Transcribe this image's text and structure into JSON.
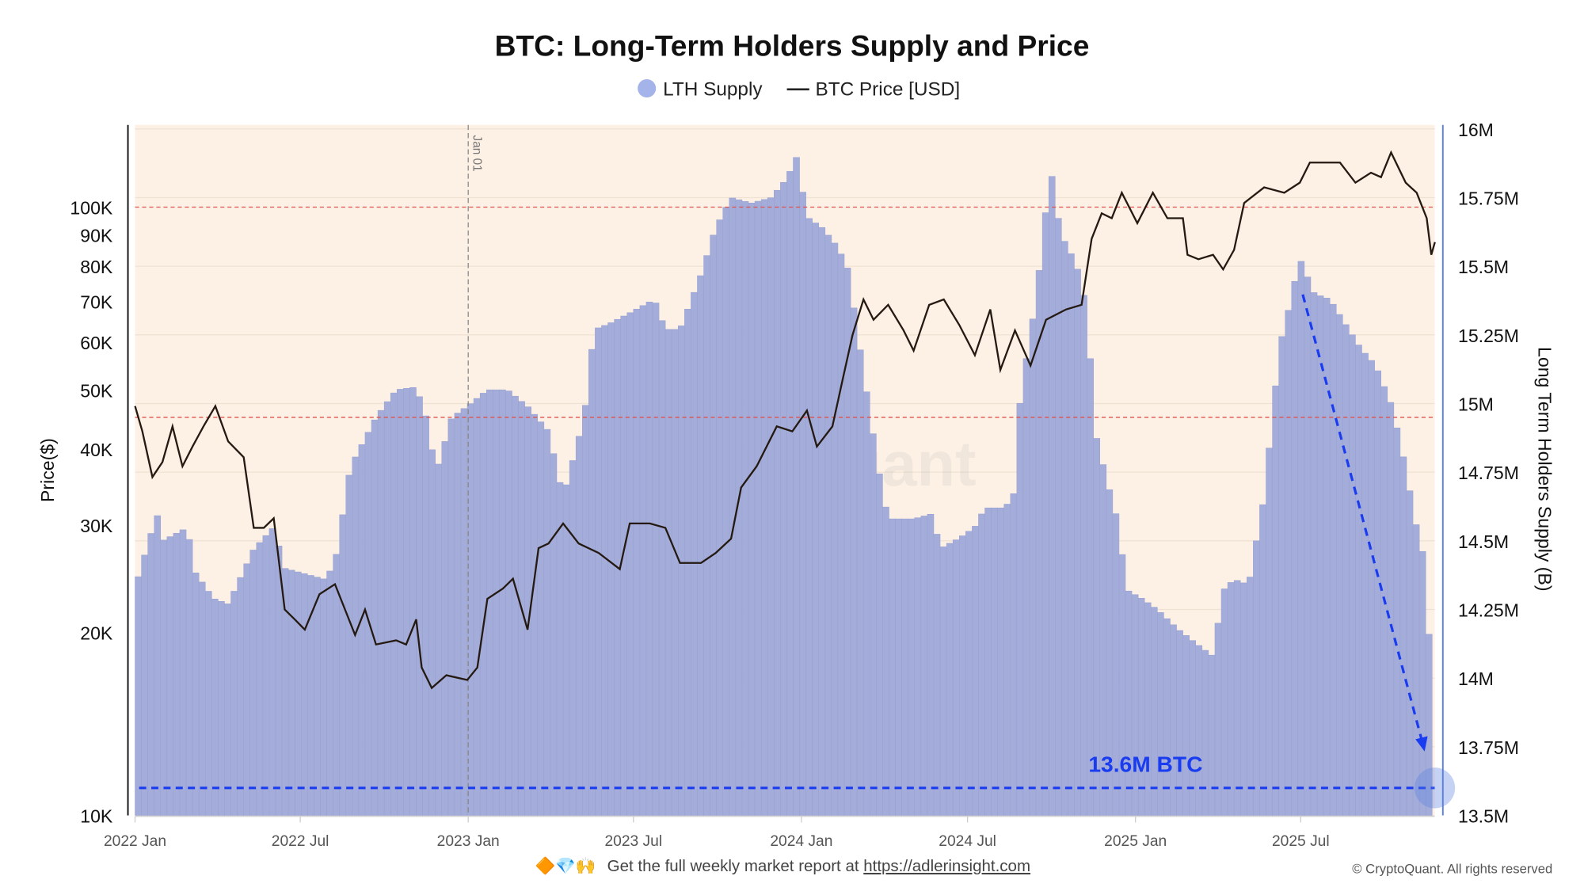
{
  "chart_data": {
    "type": "bar+line",
    "title": "BTC: Long-Term Holders Supply and Price",
    "legend": {
      "placement": "top-center",
      "entries": [
        "LTH Supply",
        "BTC Price [USD]"
      ]
    },
    "ylabel_left": "Price($)",
    "ylabel_right": "Long Term Holders Supply (B)",
    "y_left": {
      "scale": "log",
      "range": [
        10000,
        160000
      ],
      "ticks": [
        10000,
        20000,
        30000,
        40000,
        50000,
        60000,
        70000,
        80000,
        90000,
        100000
      ],
      "tick_labels": [
        "10K",
        "20K",
        "30K",
        "40K",
        "50K",
        "60K",
        "70K",
        "80K",
        "90K",
        "100K"
      ]
    },
    "y_right": {
      "scale": "linear",
      "range": [
        13500000,
        16000000
      ],
      "ticks": [
        13500000,
        13750000,
        14000000,
        14250000,
        14500000,
        14750000,
        15000000,
        15250000,
        15500000,
        15750000,
        16000000
      ],
      "tick_labels": [
        "13.5M",
        "13.75M",
        "14M",
        "14.25M",
        "14.5M",
        "14.75M",
        "15M",
        "15.25M",
        "15.5M",
        "15.75M",
        "16M"
      ]
    },
    "x": {
      "range": [
        "2022-01-01",
        "2025-11-25"
      ],
      "ticks": [
        "2022-01-01",
        "2022-07-01",
        "2023-01-01",
        "2023-07-01",
        "2024-01-01",
        "2024-07-01",
        "2025-01-01",
        "2025-07-01"
      ],
      "tick_labels": [
        "2022 Jan",
        "2022 Jul",
        "2023 Jan",
        "2023 Jul",
        "2024 Jan",
        "2024 Jul",
        "2025 Jan",
        "2025 Jul"
      ]
    },
    "grid": true,
    "colors": {
      "lth": "#a4acd9",
      "price": "#241a12",
      "background": "#fdf1e5",
      "ref_line": "#e0524f",
      "annotation": "#1a3cf0",
      "right_axis": "#5a7fe0"
    },
    "series": [
      {
        "name": "LTH Supply",
        "kind": "bar",
        "points": [
          [
            "2022-01-01",
            14.33
          ],
          [
            "2022-01-25",
            14.6
          ],
          [
            "2022-01-31",
            14.5
          ],
          [
            "2022-02-28",
            14.55
          ],
          [
            "2022-03-05",
            14.4
          ],
          [
            "2022-03-28",
            14.29
          ],
          [
            "2022-04-13",
            14.27
          ],
          [
            "2022-05-11",
            14.47
          ],
          [
            "2022-06-02",
            14.55
          ],
          [
            "2022-06-14",
            14.4
          ],
          [
            "2022-07-06",
            14.38
          ],
          [
            "2022-07-28",
            14.36
          ],
          [
            "2022-08-08",
            14.42
          ],
          [
            "2022-08-25",
            14.77
          ],
          [
            "2022-09-22",
            14.95
          ],
          [
            "2022-10-14",
            15.05
          ],
          [
            "2022-11-05",
            15.06
          ],
          [
            "2022-11-16",
            14.95
          ],
          [
            "2022-11-27",
            14.75
          ],
          [
            "2022-12-14",
            14.95
          ],
          [
            "2022-12-31",
            14.99
          ],
          [
            "2023-01-22",
            15.05
          ],
          [
            "2023-02-13",
            15.05
          ],
          [
            "2023-03-07",
            14.99
          ],
          [
            "2023-03-30",
            14.9
          ],
          [
            "2023-04-15",
            14.66
          ],
          [
            "2023-05-08",
            14.95
          ],
          [
            "2023-05-19",
            15.27
          ],
          [
            "2023-06-04",
            15.29
          ],
          [
            "2023-06-27",
            15.33
          ],
          [
            "2023-07-24",
            15.38
          ],
          [
            "2023-08-05",
            15.27
          ],
          [
            "2023-08-21",
            15.27
          ],
          [
            "2023-09-13",
            15.47
          ],
          [
            "2023-09-29",
            15.64
          ],
          [
            "2023-10-16",
            15.75
          ],
          [
            "2023-11-07",
            15.73
          ],
          [
            "2023-11-29",
            15.75
          ],
          [
            "2023-12-16",
            15.82
          ],
          [
            "2023-12-27",
            15.9
          ],
          [
            "2024-01-07",
            15.68
          ],
          [
            "2024-01-24",
            15.64
          ],
          [
            "2024-02-10",
            15.57
          ],
          [
            "2024-02-21",
            15.49
          ],
          [
            "2024-03-03",
            15.25
          ],
          [
            "2024-03-14",
            15.01
          ],
          [
            "2024-03-25",
            14.77
          ],
          [
            "2024-04-05",
            14.58
          ],
          [
            "2024-05-03",
            14.58
          ],
          [
            "2024-05-25",
            14.6
          ],
          [
            "2024-05-31",
            14.47
          ],
          [
            "2024-06-22",
            14.51
          ],
          [
            "2024-07-09",
            14.55
          ],
          [
            "2024-07-20",
            14.62
          ],
          [
            "2024-08-11",
            14.62
          ],
          [
            "2024-08-22",
            14.68
          ],
          [
            "2024-08-28",
            15.03
          ],
          [
            "2024-09-14",
            15.38
          ],
          [
            "2024-09-22",
            15.62
          ],
          [
            "2024-09-30",
            15.86
          ],
          [
            "2024-10-11",
            15.62
          ],
          [
            "2024-10-28",
            15.51
          ],
          [
            "2024-11-08",
            15.36
          ],
          [
            "2024-11-19",
            14.88
          ],
          [
            "2024-11-30",
            14.73
          ],
          [
            "2024-12-12",
            14.58
          ],
          [
            "2024-12-23",
            14.32
          ],
          [
            "2025-01-08",
            14.29
          ],
          [
            "2025-01-25",
            14.25
          ],
          [
            "2025-02-16",
            14.18
          ],
          [
            "2025-03-11",
            14.12
          ],
          [
            "2025-03-27",
            14.08
          ],
          [
            "2025-04-07",
            14.32
          ],
          [
            "2025-04-19",
            14.36
          ],
          [
            "2025-05-05",
            14.34
          ],
          [
            "2025-05-22",
            14.66
          ],
          [
            "2025-06-08",
            15.21
          ],
          [
            "2025-06-19",
            15.36
          ],
          [
            "2025-06-30",
            15.53
          ],
          [
            "2025-07-16",
            15.4
          ],
          [
            "2025-08-02",
            15.38
          ],
          [
            "2025-08-19",
            15.29
          ],
          [
            "2025-09-05",
            15.2
          ],
          [
            "2025-09-21",
            15.14
          ],
          [
            "2025-10-08",
            15.0
          ],
          [
            "2025-10-19",
            14.85
          ],
          [
            "2025-11-05",
            14.55
          ],
          [
            "2025-11-16",
            14.4
          ],
          [
            "2025-11-21",
            13.92
          ]
        ]
      },
      {
        "name": "BTC Price [USD]",
        "kind": "line",
        "points": [
          [
            "2022-01-01",
            47100
          ],
          [
            "2022-01-09",
            42800
          ],
          [
            "2022-01-20",
            36000
          ],
          [
            "2022-01-31",
            38100
          ],
          [
            "2022-02-11",
            43600
          ],
          [
            "2022-02-22",
            37500
          ],
          [
            "2022-03-05",
            40400
          ],
          [
            "2022-03-17",
            43600
          ],
          [
            "2022-03-30",
            47100
          ],
          [
            "2022-04-13",
            41200
          ],
          [
            "2022-04-30",
            38800
          ],
          [
            "2022-05-11",
            29700
          ],
          [
            "2022-05-22",
            29700
          ],
          [
            "2022-06-02",
            30800
          ],
          [
            "2022-06-14",
            21800
          ],
          [
            "2022-06-25",
            21000
          ],
          [
            "2022-07-06",
            20200
          ],
          [
            "2022-07-22",
            23100
          ],
          [
            "2022-08-08",
            24000
          ],
          [
            "2022-08-19",
            21800
          ],
          [
            "2022-08-30",
            19800
          ],
          [
            "2022-09-10",
            21800
          ],
          [
            "2022-09-22",
            19100
          ],
          [
            "2022-10-14",
            19400
          ],
          [
            "2022-10-25",
            19100
          ],
          [
            "2022-11-05",
            21000
          ],
          [
            "2022-11-11",
            17500
          ],
          [
            "2022-11-22",
            16200
          ],
          [
            "2022-12-08",
            17000
          ],
          [
            "2022-12-31",
            16700
          ],
          [
            "2023-01-11",
            17500
          ],
          [
            "2023-01-22",
            22700
          ],
          [
            "2023-02-08",
            23600
          ],
          [
            "2023-02-19",
            24500
          ],
          [
            "2023-03-07",
            20200
          ],
          [
            "2023-03-19",
            27500
          ],
          [
            "2023-03-30",
            28000
          ],
          [
            "2023-04-15",
            30200
          ],
          [
            "2023-05-02",
            28000
          ],
          [
            "2023-05-24",
            27000
          ],
          [
            "2023-06-16",
            25400
          ],
          [
            "2023-06-27",
            30200
          ],
          [
            "2023-07-19",
            30200
          ],
          [
            "2023-08-05",
            29700
          ],
          [
            "2023-08-21",
            26000
          ],
          [
            "2023-09-13",
            26000
          ],
          [
            "2023-09-29",
            27000
          ],
          [
            "2023-10-16",
            28500
          ],
          [
            "2023-10-27",
            34600
          ],
          [
            "2023-11-13",
            37500
          ],
          [
            "2023-12-05",
            43600
          ],
          [
            "2023-12-22",
            42800
          ],
          [
            "2024-01-07",
            46300
          ],
          [
            "2024-01-18",
            40400
          ],
          [
            "2024-02-04",
            43600
          ],
          [
            "2024-02-15",
            51900
          ],
          [
            "2024-02-26",
            61600
          ],
          [
            "2024-03-09",
            70500
          ],
          [
            "2024-03-20",
            65300
          ],
          [
            "2024-04-05",
            69100
          ],
          [
            "2024-04-22",
            62700
          ],
          [
            "2024-05-03",
            58100
          ],
          [
            "2024-05-20",
            69100
          ],
          [
            "2024-06-05",
            70500
          ],
          [
            "2024-06-22",
            64000
          ],
          [
            "2024-07-09",
            57100
          ],
          [
            "2024-07-26",
            67900
          ],
          [
            "2024-08-06",
            54000
          ],
          [
            "2024-08-22",
            62700
          ],
          [
            "2024-09-08",
            54900
          ],
          [
            "2024-09-25",
            65300
          ],
          [
            "2024-10-17",
            67900
          ],
          [
            "2024-11-03",
            69100
          ],
          [
            "2024-11-14",
            88700
          ],
          [
            "2024-11-25",
            97700
          ],
          [
            "2024-12-06",
            95900
          ],
          [
            "2024-12-17",
            105600
          ],
          [
            "2025-01-03",
            94100
          ],
          [
            "2025-01-20",
            105600
          ],
          [
            "2025-02-05",
            95900
          ],
          [
            "2025-02-22",
            95900
          ],
          [
            "2025-02-27",
            83500
          ],
          [
            "2025-03-11",
            82100
          ],
          [
            "2025-03-27",
            83500
          ],
          [
            "2025-04-07",
            79000
          ],
          [
            "2025-04-19",
            85100
          ],
          [
            "2025-04-30",
            101600
          ],
          [
            "2025-05-22",
            107800
          ],
          [
            "2025-06-13",
            105600
          ],
          [
            "2025-06-30",
            109700
          ],
          [
            "2025-07-11",
            118400
          ],
          [
            "2025-07-28",
            118400
          ],
          [
            "2025-08-13",
            118400
          ],
          [
            "2025-08-30",
            109700
          ],
          [
            "2025-09-16",
            113900
          ],
          [
            "2025-09-27",
            112000
          ],
          [
            "2025-10-08",
            123000
          ],
          [
            "2025-10-24",
            109700
          ],
          [
            "2025-11-05",
            105600
          ],
          [
            "2025-11-16",
            95900
          ],
          [
            "2025-11-21",
            83500
          ],
          [
            "2025-11-25",
            87600
          ]
        ]
      }
    ],
    "reference_lines": {
      "vertical": {
        "date": "2023-01-01",
        "label": "Jan 01"
      }
    },
    "annotations": {
      "level_label": "13.6M BTC",
      "level_value": 13600000
    }
  },
  "footer": {
    "emoji": "🔶💎🙌",
    "text": "Get the full weekly market report at ",
    "link": "https://adlerinsight.com",
    "copyright": "© CryptoQuant. All rights reserved"
  },
  "watermark": "CryptoQuant"
}
